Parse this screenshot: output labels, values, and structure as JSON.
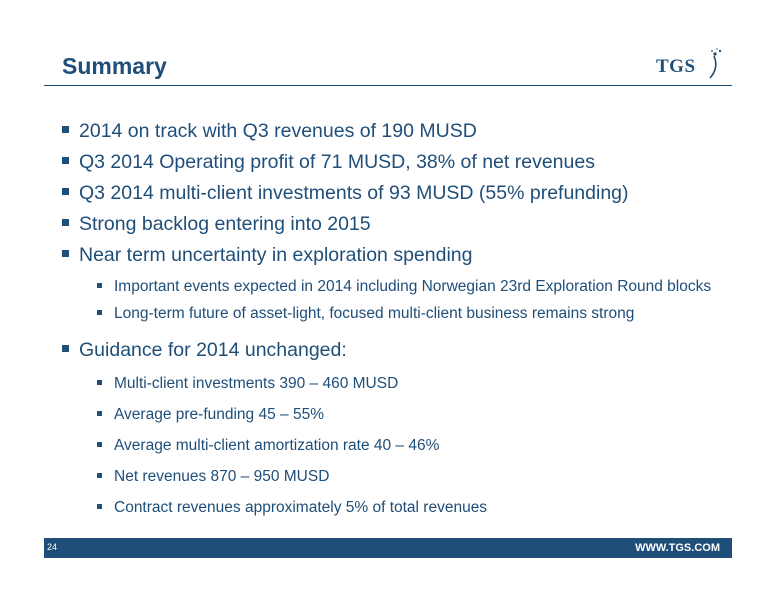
{
  "slide": {
    "title": "Summary",
    "logo_text": "TGS"
  },
  "bullets": [
    {
      "text": "2014 on track with Q3 revenues of 190 MUSD"
    },
    {
      "text": "Q3 2014 Operating profit of 71 MUSD, 38% of net revenues"
    },
    {
      "text": "Q3 2014 multi-client investments of 93 MUSD (55% prefunding)"
    },
    {
      "text": "Strong backlog entering into 2015"
    },
    {
      "text": "Near term uncertainty in exploration spending",
      "sub": [
        "Important events expected in 2014 including Norwegian 23rd Exploration Round blocks",
        "Long-term future of asset-light, focused multi-client business remains strong"
      ]
    },
    {
      "text": "Guidance for 2014 unchanged:",
      "sub": [
        "Multi-client investments  390 – 460 MUSD",
        "Average pre-funding 45 – 55%",
        "Average multi-client amortization rate 40 – 46%",
        "Net revenues  870 – 950 MUSD",
        "Contract revenues approximately 5% of total revenues"
      ]
    }
  ],
  "footer": {
    "page_number": "24",
    "url": "WWW.TGS.COM"
  },
  "colors": {
    "brand": "#1f4e79",
    "background": "#ffffff"
  }
}
